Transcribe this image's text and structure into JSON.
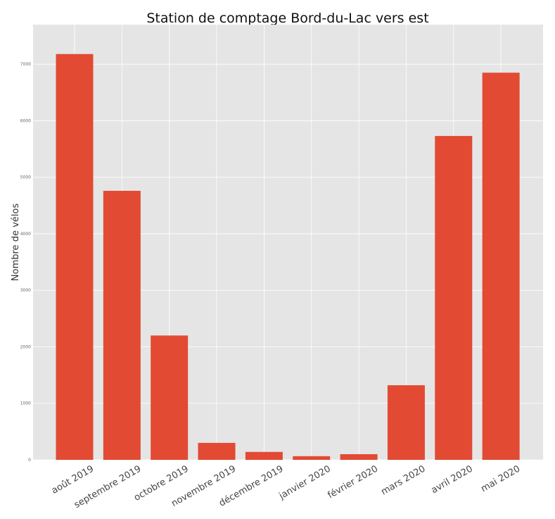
{
  "chart_data": {
    "type": "bar",
    "title": "Station de comptage Bord-du-Lac vers est",
    "xlabel": "",
    "ylabel": "Nombre de vélos",
    "categories": [
      "août 2019",
      "septembre 2019",
      "octobre 2019",
      "novembre 2019",
      "décembre 2019",
      "janvier 2020",
      "février 2020",
      "mars 2020",
      "avril 2020",
      "mai 2020"
    ],
    "values": [
      7180,
      4760,
      2200,
      300,
      140,
      65,
      100,
      1320,
      5730,
      6850
    ],
    "ylim": [
      0,
      7700
    ],
    "yticks": [
      "0",
      "1000",
      "2000",
      "3000",
      "4000",
      "5000",
      "6000",
      "7000"
    ],
    "grid": true,
    "colors": {
      "bar": "#e24a33",
      "background": "#e5e5e5",
      "grid": "#ffffff"
    }
  }
}
